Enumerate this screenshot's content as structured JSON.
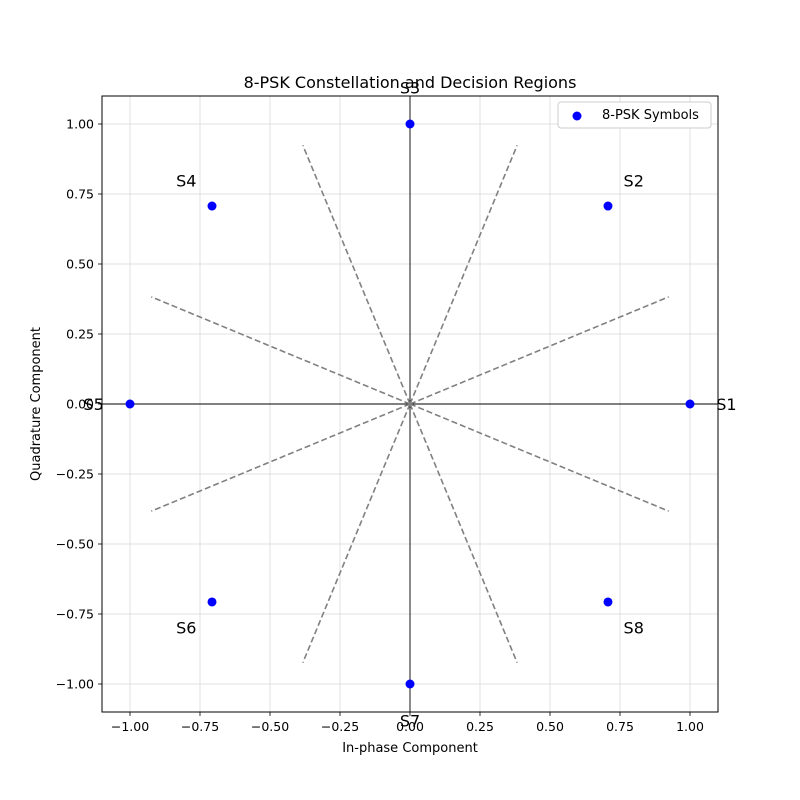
{
  "chart_data": {
    "type": "scatter",
    "title": "8-PSK Constellation and Decision Regions",
    "xlabel": "In-phase Component",
    "ylabel": "Quadrature Component",
    "xlim": [
      -1.1,
      1.1
    ],
    "ylim": [
      -1.1,
      1.1
    ],
    "xticks": [
      "−1.00",
      "−0.75",
      "−0.50",
      "−0.25",
      "0.00",
      "0.25",
      "0.50",
      "0.75",
      "1.00"
    ],
    "yticks": [
      "1.00",
      "0.75",
      "0.50",
      "0.25",
      "0.00",
      "−0.25",
      "−0.50",
      "−0.75",
      "−1.00"
    ],
    "grid": true,
    "legend": {
      "placement": "top-right",
      "label": "8-PSK Symbols"
    },
    "marker_color": "#0000ff",
    "boundary_color": "#808080",
    "series": [
      {
        "name": "8-PSK Symbols",
        "points": [
          {
            "label": "S1",
            "x": 1.0,
            "y": 0.0
          },
          {
            "label": "S2",
            "x": 0.7071,
            "y": 0.7071
          },
          {
            "label": "S3",
            "x": 0.0,
            "y": 1.0
          },
          {
            "label": "S4",
            "x": -0.7071,
            "y": 0.7071
          },
          {
            "label": "S5",
            "x": -1.0,
            "y": 0.0
          },
          {
            "label": "S6",
            "x": -0.7071,
            "y": -0.7071
          },
          {
            "label": "S7",
            "x": 0.0,
            "y": -1.0
          },
          {
            "label": "S8",
            "x": 0.7071,
            "y": -0.7071
          }
        ]
      }
    ],
    "decision_boundaries_deg": [
      22.5,
      67.5,
      112.5,
      157.5,
      202.5,
      247.5,
      292.5,
      337.5
    ],
    "boundary_radius": 1.0
  }
}
